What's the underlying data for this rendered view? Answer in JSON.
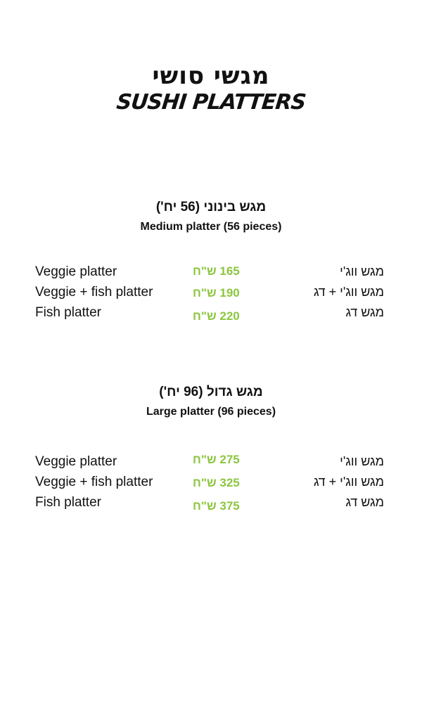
{
  "title": {
    "hebrew": "מגשי סושי",
    "english": "SUSHI PLATTERS"
  },
  "sections": [
    {
      "hebrew": "מגש בינוני (56 יח')",
      "english": "Medium platter (56 pieces)",
      "items": [
        {
          "english": "Veggie platter",
          "price": "165 ש\"ח",
          "hebrew": "מגש ווג'י"
        },
        {
          "english": "Veggie + fish platter",
          "price": "190 ש\"ח",
          "hebrew": "מגש ווג'י + דג"
        },
        {
          "english": "Fish platter",
          "price": "220 ש\"ח",
          "hebrew": "מגש דג"
        }
      ]
    },
    {
      "hebrew": "מגש גדול (96 יח')",
      "english": "Large platter (96 pieces)",
      "items": [
        {
          "english": "Veggie platter",
          "price": "275 ש\"ח",
          "hebrew": "מגש ווג'י"
        },
        {
          "english": "Veggie + fish platter",
          "price": "325 ש\"ח",
          "hebrew": "מגש ווג'י + דג"
        },
        {
          "english": "Fish platter",
          "price": "375 ש\"ח",
          "hebrew": "מגש דג"
        }
      ]
    }
  ],
  "colors": {
    "price": "#8cc63f",
    "text": "#111111",
    "background": "#ffffff"
  }
}
